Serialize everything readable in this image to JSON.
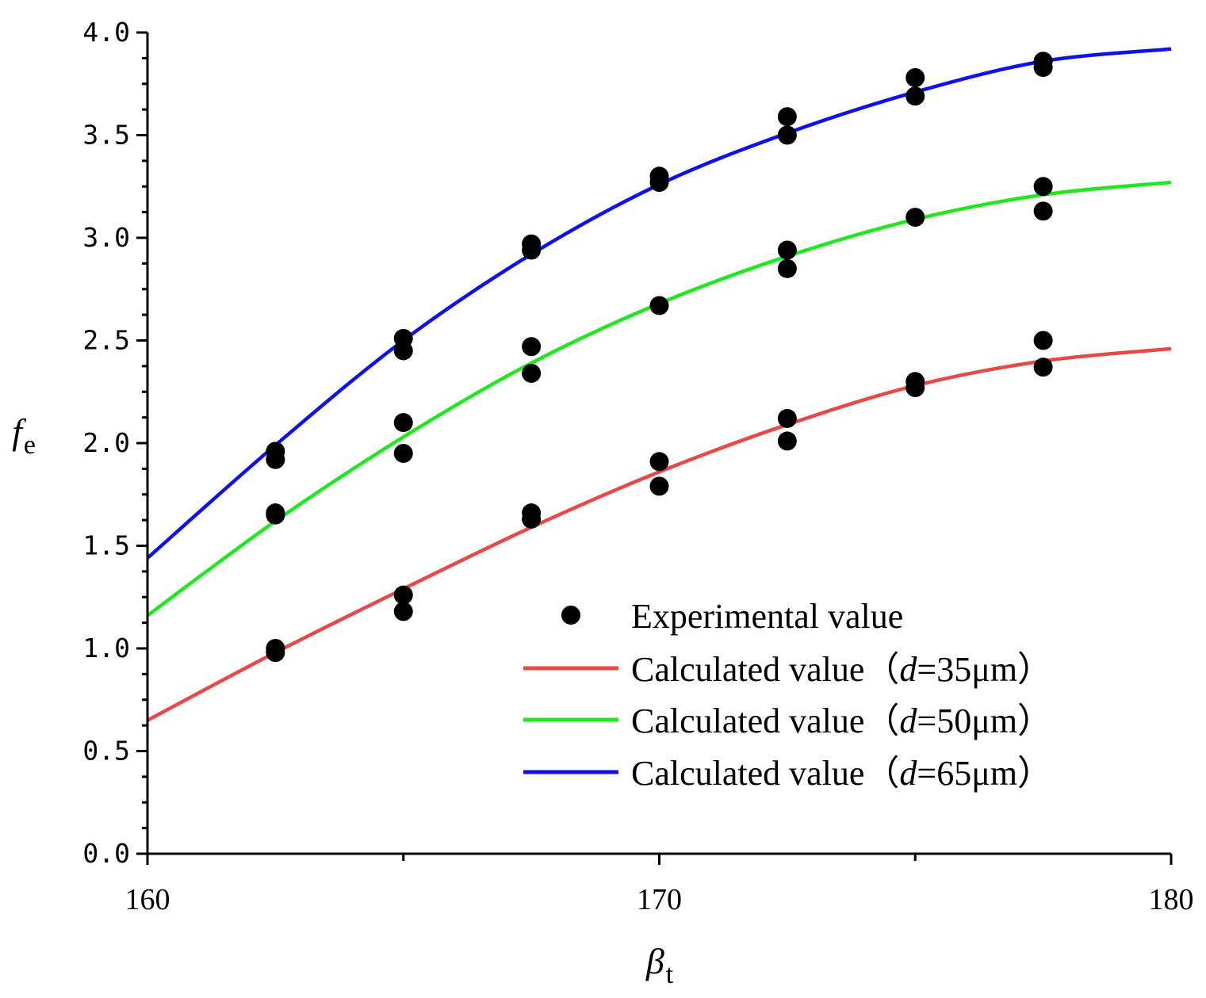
{
  "chart_data": {
    "type": "scatter",
    "title": "",
    "xlabel": {
      "base": "β",
      "sub": "t"
    },
    "ylabel": {
      "base": "f",
      "sub": "e"
    },
    "xlim": [
      160,
      180
    ],
    "ylim": [
      0,
      4
    ],
    "x_major_ticks": [
      160,
      170,
      180
    ],
    "x_minor_ticks": [
      165,
      175
    ],
    "y_major_ticks": [
      0.0,
      0.5,
      1.0,
      1.5,
      2.0,
      2.5,
      3.0,
      3.5,
      4.0
    ],
    "x_tick_labels": [
      "160",
      "170",
      "180"
    ],
    "y_tick_labels": [
      "0.0",
      "0.5",
      "1.0",
      "1.5",
      "2.0",
      "2.5",
      "3.0",
      "3.5",
      "4.0"
    ],
    "grid": false,
    "legend_position": "lower-right",
    "experimental": {
      "name": "Experimental value",
      "color": "#000000",
      "points": [
        [
          162.5,
          1.0
        ],
        [
          162.5,
          0.98
        ],
        [
          162.5,
          1.66
        ],
        [
          162.5,
          1.65
        ],
        [
          162.5,
          1.96
        ],
        [
          162.5,
          1.92
        ],
        [
          165.0,
          1.26
        ],
        [
          165.0,
          1.18
        ],
        [
          165.0,
          2.1
        ],
        [
          165.0,
          1.95
        ],
        [
          165.0,
          2.51
        ],
        [
          165.0,
          2.45
        ],
        [
          167.5,
          1.66
        ],
        [
          167.5,
          1.63
        ],
        [
          167.5,
          2.47
        ],
        [
          167.5,
          2.34
        ],
        [
          167.5,
          2.97
        ],
        [
          167.5,
          2.94
        ],
        [
          170.0,
          1.91
        ],
        [
          170.0,
          1.79
        ],
        [
          170.0,
          2.67
        ],
        [
          170.0,
          3.3
        ],
        [
          170.0,
          3.27
        ],
        [
          172.5,
          2.12
        ],
        [
          172.5,
          2.01
        ],
        [
          172.5,
          2.94
        ],
        [
          172.5,
          2.85
        ],
        [
          172.5,
          3.59
        ],
        [
          172.5,
          3.5
        ],
        [
          175.0,
          2.3
        ],
        [
          175.0,
          2.27
        ],
        [
          175.0,
          3.1
        ],
        [
          175.0,
          3.78
        ],
        [
          175.0,
          3.69
        ],
        [
          177.5,
          2.5
        ],
        [
          177.5,
          2.37
        ],
        [
          177.5,
          3.25
        ],
        [
          177.5,
          3.13
        ],
        [
          177.5,
          3.86
        ],
        [
          177.5,
          3.83
        ]
      ]
    },
    "series": [
      {
        "name": "Calculated value（d=35μm）",
        "label_prefix": "Calculated value（",
        "label_var": "d",
        "label_suffix": "=35μm）",
        "color": "#e84848",
        "x": [
          160,
          162.5,
          165,
          167.5,
          170,
          172.5,
          175,
          177.5,
          180
        ],
        "values": [
          0.65,
          0.98,
          1.29,
          1.59,
          1.86,
          2.09,
          2.28,
          2.4,
          2.46
        ]
      },
      {
        "name": "Calculated value（d=50μm）",
        "label_prefix": "Calculated value（",
        "label_var": "d",
        "label_suffix": "=50μm）",
        "color": "#1ee81e",
        "x": [
          160,
          162.5,
          165,
          167.5,
          170,
          172.5,
          175,
          177.5,
          180
        ],
        "values": [
          1.16,
          1.62,
          2.03,
          2.39,
          2.68,
          2.91,
          3.09,
          3.21,
          3.27
        ]
      },
      {
        "name": "Calculated value（d=65μm）",
        "label_prefix": "Calculated value（",
        "label_var": "d",
        "label_suffix": "=65μm）",
        "color": "#1010ee",
        "x": [
          160,
          162.5,
          165,
          167.5,
          170,
          172.5,
          175,
          177.5,
          180
        ],
        "values": [
          1.44,
          1.99,
          2.5,
          2.92,
          3.26,
          3.51,
          3.71,
          3.86,
          3.92
        ]
      }
    ]
  }
}
